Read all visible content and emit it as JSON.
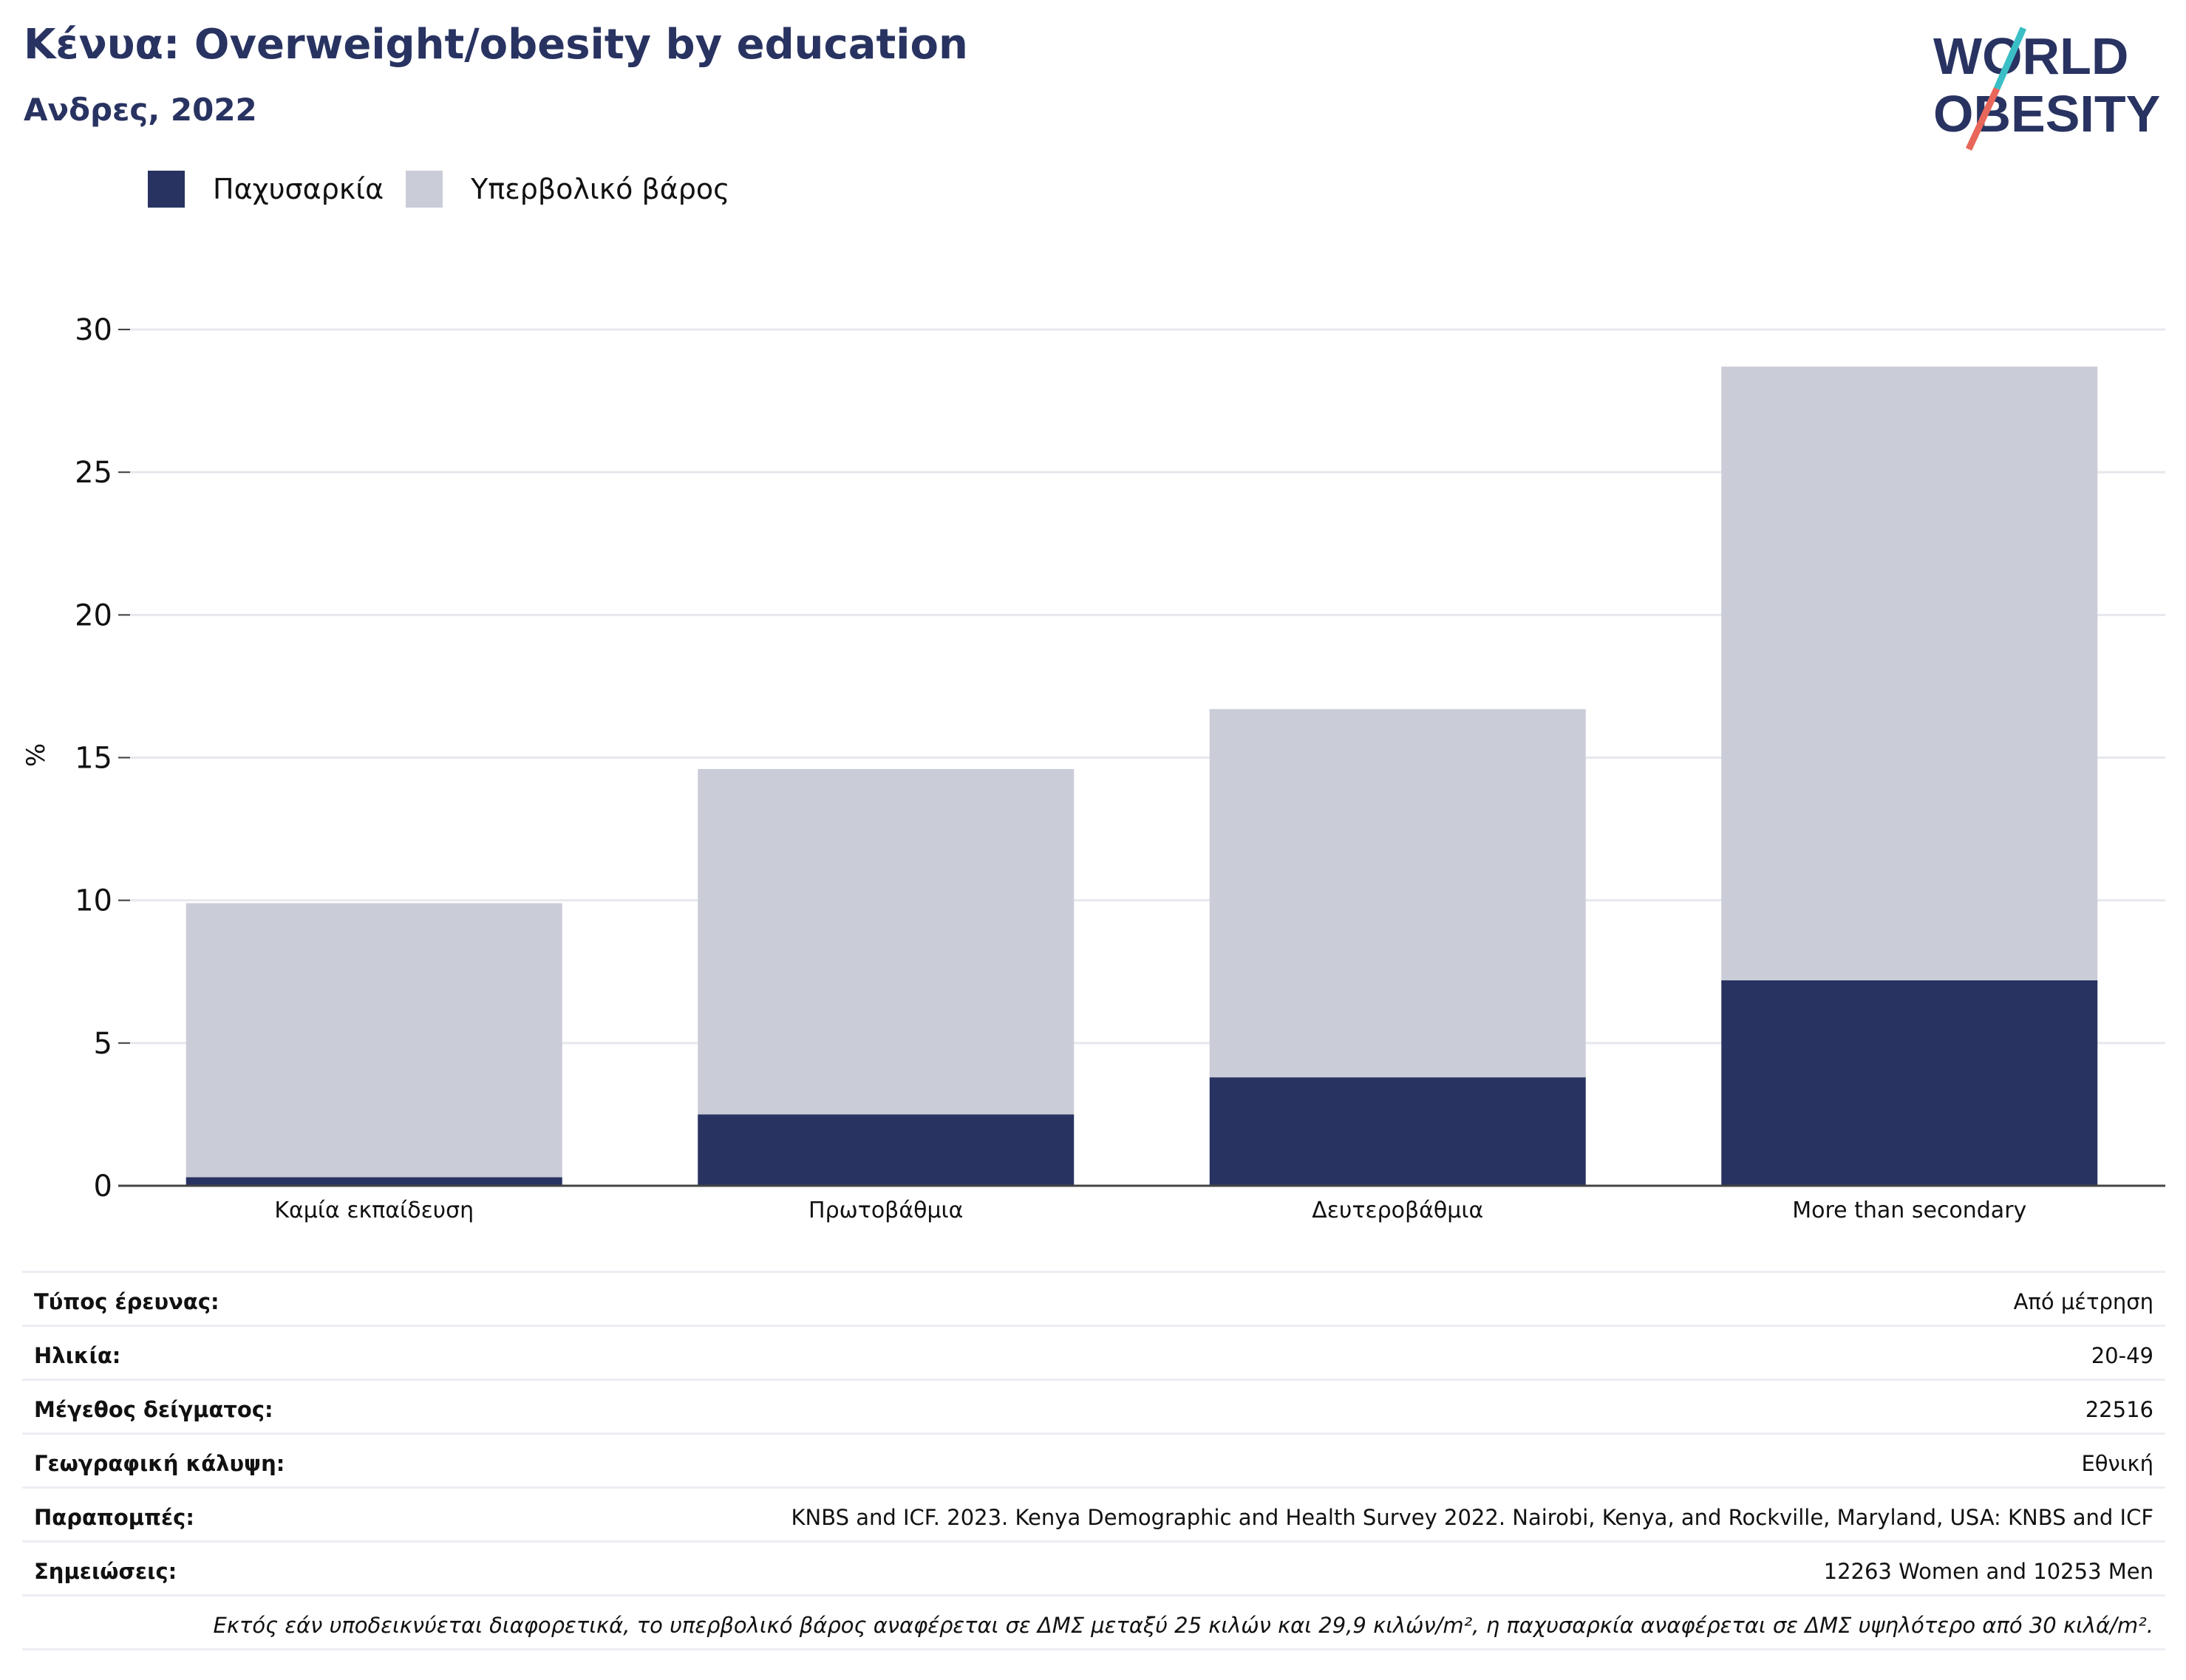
{
  "header": {
    "title": "Κένυα: Overweight/obesity by education",
    "subtitle": "Ανδρες, 2022"
  },
  "logo": {
    "line1": "WORLD",
    "line2": "OBESITY"
  },
  "colors": {
    "obesity": "#283361",
    "overweight": "#caccd8",
    "text_accent": "#283361",
    "logo_teal": "#3bbfc6",
    "logo_red": "#e8675a"
  },
  "legend": [
    {
      "label": "Παχυσαρκία",
      "color": "#283361"
    },
    {
      "label": "Υπερβολικό βάρος",
      "color": "#caccd8"
    }
  ],
  "chart_data": {
    "type": "bar",
    "stacked": true,
    "categories": [
      "Καμία εκπαίδευση",
      "Πρωτοβάθμια",
      "Δευτεροβάθμια",
      "More than secondary"
    ],
    "series": [
      {
        "name": "Παχυσαρκία",
        "color": "#283361",
        "values": [
          0.3,
          2.5,
          3.8,
          7.2
        ]
      },
      {
        "name": "Υπερβολικό βάρος",
        "color": "#caccd8",
        "values": [
          9.6,
          12.1,
          12.9,
          21.5
        ]
      }
    ],
    "ylabel": "%",
    "ylim": [
      0,
      30
    ],
    "yticks": [
      0,
      5,
      10,
      15,
      20,
      25,
      30
    ],
    "grid": true,
    "legend_position": "top-left"
  },
  "info_table": [
    {
      "key": "Τύπος έρευνας:",
      "value": "Από μέτρηση"
    },
    {
      "key": "Ηλικία:",
      "value": "20-49"
    },
    {
      "key": "Μέγεθος δείγματος:",
      "value": "22516"
    },
    {
      "key": "Γεωγραφική κάλυψη:",
      "value": "Εθνική"
    },
    {
      "key": "Παραπομπές:",
      "value": "KNBS and ICF. 2023. Kenya Demographic and Health Survey 2022. Nairobi, Kenya, and Rockville, Maryland, USA: KNBS and ICF"
    },
    {
      "key": "Σημειώσεις:",
      "value": "12263 Women and 10253 Men"
    }
  ],
  "footnote": "Εκτός εάν υποδεικνύεται διαφορετικά, το υπερβολικό βάρος αναφέρεται σε ΔΜΣ μεταξύ 25 κιλών και 29,9 κιλών/m², η παχυσαρκία αναφέρεται σε ΔΜΣ υψηλότερο από 30 κιλά/m²."
}
